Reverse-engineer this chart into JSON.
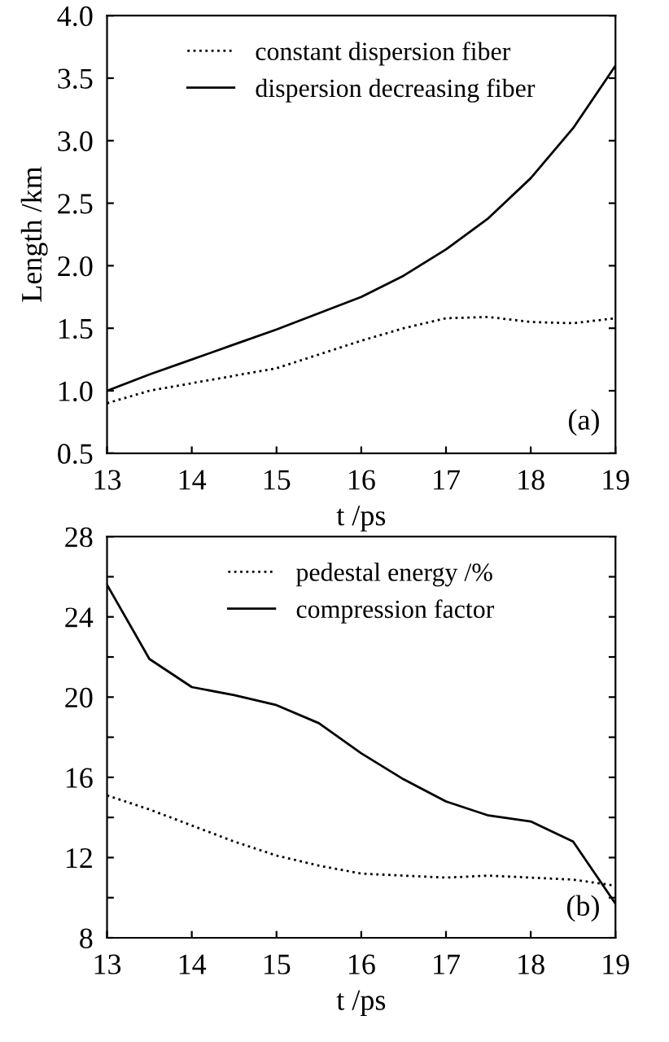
{
  "chart_data": [
    {
      "type": "line",
      "xlabel": "t /ps",
      "ylabel": "Length /km",
      "annotations": [
        "(a)"
      ],
      "xlim": [
        13,
        19
      ],
      "ylim": [
        0.5,
        4.0
      ],
      "xticks": [
        13,
        14,
        15,
        16,
        17,
        18,
        19
      ],
      "yticks": [
        {
          "value": 0.5,
          "label": "0.5"
        },
        {
          "value": 1.0,
          "label": "1.0"
        },
        {
          "value": 1.5,
          "label": "1.5"
        },
        {
          "value": 2.0,
          "label": "2.0"
        },
        {
          "value": 2.5,
          "label": "2.5"
        },
        {
          "value": 3.0,
          "label": "3.0"
        },
        {
          "value": 3.5,
          "label": "3.5"
        },
        {
          "value": 4.0,
          "label": "4.0"
        }
      ],
      "legend": "top",
      "grid": false,
      "x": [
        13,
        13.5,
        14,
        14.5,
        15,
        15.5,
        16,
        16.5,
        17,
        17.5,
        18,
        18.5,
        19
      ],
      "series": [
        {
          "name": "constant dispersion fiber",
          "color": "#000000",
          "line_style": "dotted",
          "values": [
            0.9,
            1.0,
            1.06,
            1.12,
            1.18,
            1.29,
            1.4,
            1.5,
            1.58,
            1.59,
            1.55,
            1.54,
            1.58
          ]
        },
        {
          "name": "dispersion decreasing fiber",
          "color": "#000000",
          "line_style": "solid",
          "values": [
            1.0,
            1.13,
            1.25,
            1.37,
            1.49,
            1.62,
            1.75,
            1.92,
            2.13,
            2.38,
            2.7,
            3.1,
            3.6
          ]
        }
      ]
    },
    {
      "type": "line",
      "xlabel": "t /ps",
      "annotations": [
        "(b)"
      ],
      "xlim": [
        13,
        19
      ],
      "ylim": [
        8,
        28
      ],
      "xticks": [
        13,
        14,
        15,
        16,
        17,
        18,
        19
      ],
      "yticks": [
        8,
        {
          "value": 10,
          "label": null
        },
        12,
        {
          "value": 14,
          "label": null
        },
        16,
        {
          "value": 18,
          "label": null
        },
        20,
        {
          "value": 22,
          "label": null
        },
        24,
        {
          "value": 26,
          "label": null
        },
        28
      ],
      "legend": "top",
      "grid": false,
      "x": [
        13,
        13.5,
        14,
        14.5,
        15,
        15.5,
        16,
        16.5,
        17,
        17.5,
        18,
        18.5,
        19
      ],
      "series": [
        {
          "name": "pedestal energy /%",
          "color": "#000000",
          "line_style": "dotted",
          "values": [
            15.1,
            14.4,
            13.6,
            12.8,
            12.1,
            11.6,
            11.2,
            11.1,
            11.0,
            11.1,
            11.0,
            10.9,
            10.6
          ]
        },
        {
          "name": "compression factor",
          "color": "#000000",
          "line_style": "solid",
          "values": [
            25.6,
            21.9,
            20.5,
            20.1,
            19.6,
            18.7,
            17.2,
            15.9,
            14.8,
            14.1,
            13.8,
            12.8,
            9.7
          ]
        }
      ]
    }
  ]
}
